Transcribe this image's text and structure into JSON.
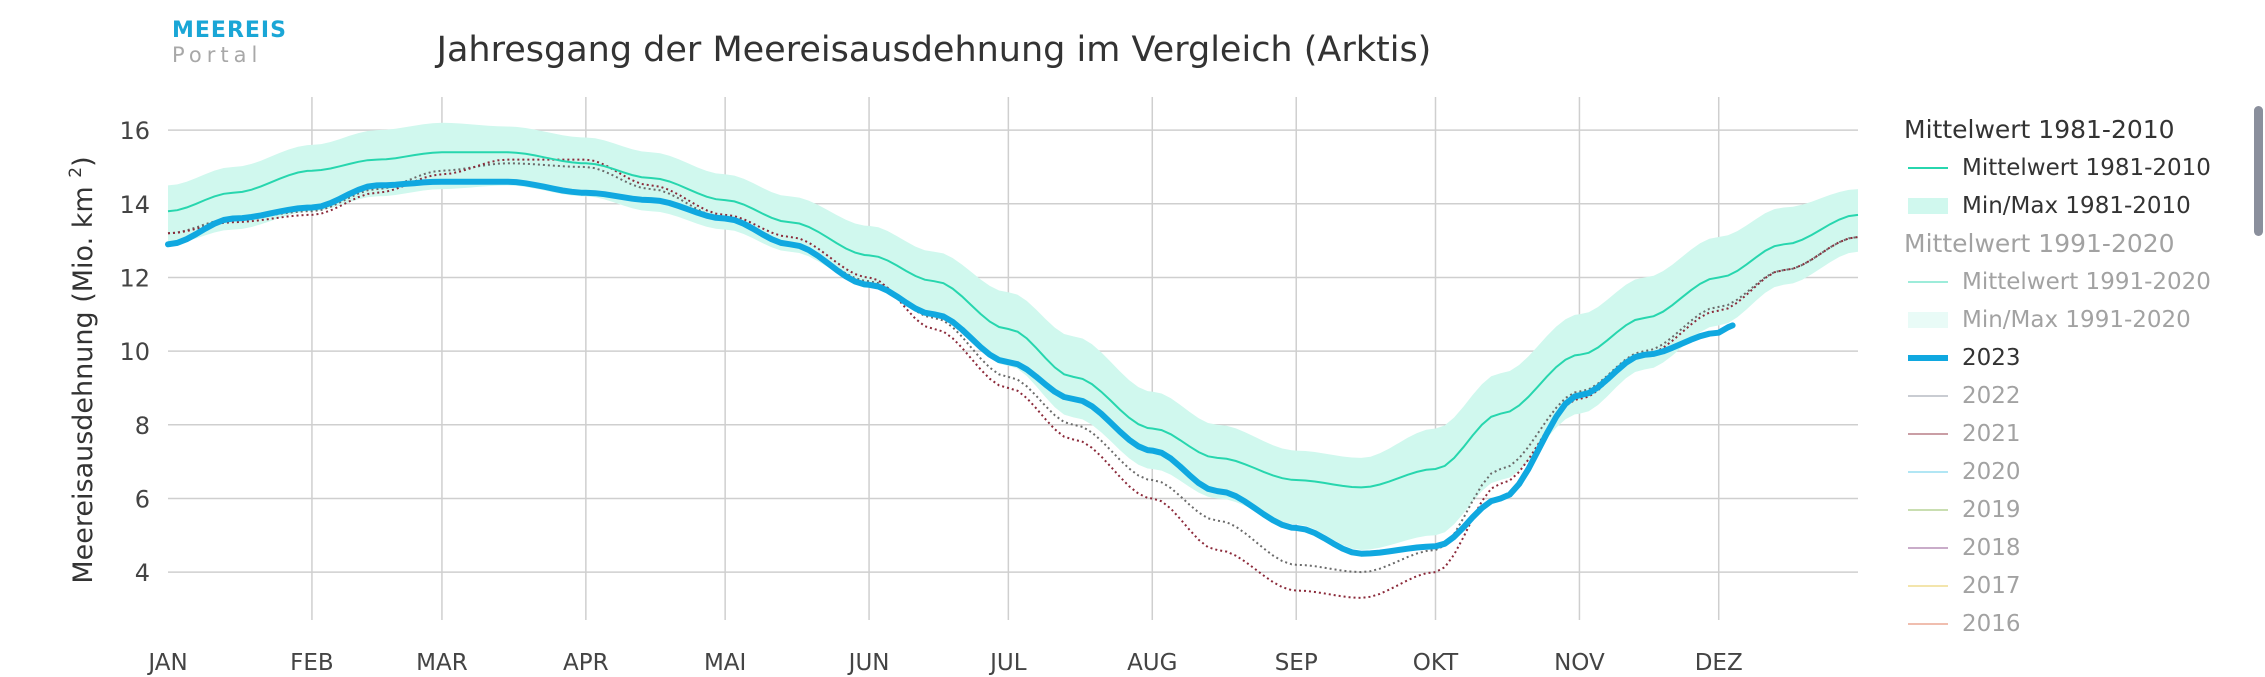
{
  "logo": {
    "line1": "MEEREIS",
    "line2": "Portal"
  },
  "chart_data": {
    "type": "line",
    "title": "Jahresgang der Meereisausdehnung im Vergleich (Arktis)",
    "ylabel": "Meereisausdehnung (Mio. km²)",
    "xlabel": "",
    "months": [
      "JAN",
      "FEB",
      "MAR",
      "APR",
      "MAI",
      "JUN",
      "JUL",
      "AUG",
      "SEP",
      "OKT",
      "NOV",
      "DEZ"
    ],
    "x_unit": "day_of_year",
    "xlim": [
      1,
      365
    ],
    "ylim": [
      2.7,
      16.9
    ],
    "yticks": [
      4,
      6,
      8,
      10,
      12,
      14,
      16
    ],
    "grid": true,
    "legend_position": "right",
    "colors": {
      "mean_1981_2010": "#27d6ae",
      "band_1981_2010": "#d0f8ee",
      "mean_1991_2020": "#27d6ae",
      "band_1991_2020": "#d0f8ee",
      "y2023": "#10a8e0",
      "y2022": "#8a8f9c",
      "y2021": "#8b2a3a",
      "y2020": "#55c8e8",
      "y2019": "#8ab854",
      "y2018": "#8a4a8a",
      "y2017": "#e6c64a",
      "y2016": "#e07050"
    },
    "mean_1981_2010": {
      "x": [
        1,
        15,
        32,
        46,
        60,
        74,
        91,
        105,
        121,
        135,
        152,
        166,
        182,
        196,
        213,
        227,
        244,
        258,
        274,
        288,
        305,
        319,
        335,
        349,
        365
      ],
      "y": [
        13.8,
        14.3,
        14.9,
        15.2,
        15.4,
        15.4,
        15.1,
        14.7,
        14.1,
        13.5,
        12.6,
        11.9,
        10.6,
        9.3,
        7.9,
        7.1,
        6.5,
        6.3,
        6.8,
        8.3,
        9.9,
        10.9,
        12.0,
        12.9,
        13.7
      ]
    },
    "band_1981_2010": {
      "x": [
        1,
        15,
        32,
        46,
        60,
        74,
        91,
        105,
        121,
        135,
        152,
        166,
        182,
        196,
        213,
        227,
        244,
        258,
        274,
        288,
        305,
        319,
        335,
        349,
        365
      ],
      "min": [
        12.9,
        13.3,
        13.8,
        14.2,
        14.4,
        14.5,
        14.2,
        13.8,
        13.3,
        12.7,
        11.8,
        11.0,
        9.6,
        8.2,
        6.8,
        6.0,
        5.3,
        4.6,
        5.0,
        6.5,
        8.3,
        9.5,
        10.7,
        11.8,
        12.7
      ],
      "max": [
        14.5,
        15.0,
        15.6,
        16.0,
        16.2,
        16.1,
        15.8,
        15.4,
        14.8,
        14.2,
        13.4,
        12.7,
        11.6,
        10.4,
        8.9,
        8.0,
        7.3,
        7.1,
        7.9,
        9.4,
        11.0,
        12.0,
        13.1,
        13.9,
        14.4
      ]
    },
    "series": [
      {
        "name": "2023",
        "x": [
          1,
          15,
          32,
          46,
          60,
          74,
          91,
          105,
          121,
          135,
          152,
          166,
          182,
          196,
          213,
          227,
          244,
          258,
          274,
          288,
          305,
          319,
          335,
          338
        ],
        "y": [
          12.9,
          13.6,
          13.9,
          14.5,
          14.6,
          14.6,
          14.3,
          14.1,
          13.6,
          12.9,
          11.8,
          11.0,
          9.7,
          8.7,
          7.3,
          6.2,
          5.2,
          4.5,
          4.7,
          6.0,
          8.8,
          9.9,
          10.5,
          10.7
        ]
      },
      {
        "name": "2022",
        "x": [
          1,
          15,
          32,
          46,
          60,
          74,
          91,
          105,
          121,
          135,
          152,
          166,
          182,
          196,
          213,
          227,
          244,
          258,
          274,
          288,
          305,
          319,
          335,
          349,
          365
        ],
        "y": [
          13.2,
          13.6,
          13.8,
          14.4,
          14.9,
          15.1,
          15.0,
          14.4,
          13.6,
          12.9,
          11.9,
          10.9,
          9.3,
          8.0,
          6.5,
          5.4,
          4.2,
          4.0,
          4.6,
          6.8,
          8.9,
          10.0,
          11.2,
          12.2,
          13.1
        ]
      },
      {
        "name": "2021",
        "x": [
          1,
          15,
          32,
          46,
          60,
          74,
          91,
          105,
          121,
          135,
          152,
          166,
          182,
          196,
          213,
          227,
          244,
          258,
          274,
          288,
          305,
          319,
          335,
          349,
          365
        ],
        "y": [
          13.2,
          13.5,
          13.7,
          14.3,
          14.8,
          15.2,
          15.2,
          14.5,
          13.7,
          13.1,
          12.0,
          10.6,
          9.0,
          7.6,
          6.0,
          4.6,
          3.5,
          3.3,
          4.0,
          6.4,
          8.7,
          9.9,
          11.1,
          12.2,
          13.1
        ]
      }
    ]
  },
  "legend": [
    {
      "kind": "title",
      "label": "Mittelwert 1981-2010",
      "dim": false
    },
    {
      "kind": "line",
      "label": "Mittelwert 1981-2010",
      "color": "#27d6ae",
      "dim": false
    },
    {
      "kind": "band",
      "label": "Min/Max 1981-2010",
      "color": "#d0f8ee",
      "dim": false
    },
    {
      "kind": "title",
      "label": "Mittelwert 1991-2020",
      "dim": true
    },
    {
      "kind": "line",
      "label": "Mittelwert 1991-2020",
      "color": "#27d6ae",
      "dim": true
    },
    {
      "kind": "band",
      "label": "Min/Max 1991-2020",
      "color": "#d0f8ee",
      "dim": true
    },
    {
      "kind": "thick",
      "label": "2023",
      "color": "#10a8e0",
      "dim": false
    },
    {
      "kind": "line",
      "label": "2022",
      "color": "#8a8f9c",
      "dim": true
    },
    {
      "kind": "line",
      "label": "2021",
      "color": "#8b2a3a",
      "dim": true
    },
    {
      "kind": "line",
      "label": "2020",
      "color": "#55c8e8",
      "dim": true
    },
    {
      "kind": "line",
      "label": "2019",
      "color": "#8ab854",
      "dim": true
    },
    {
      "kind": "line",
      "label": "2018",
      "color": "#8a4a8a",
      "dim": true
    },
    {
      "kind": "line",
      "label": "2017",
      "color": "#e6c64a",
      "dim": true
    },
    {
      "kind": "line",
      "label": "2016",
      "color": "#e07050",
      "dim": true
    }
  ]
}
